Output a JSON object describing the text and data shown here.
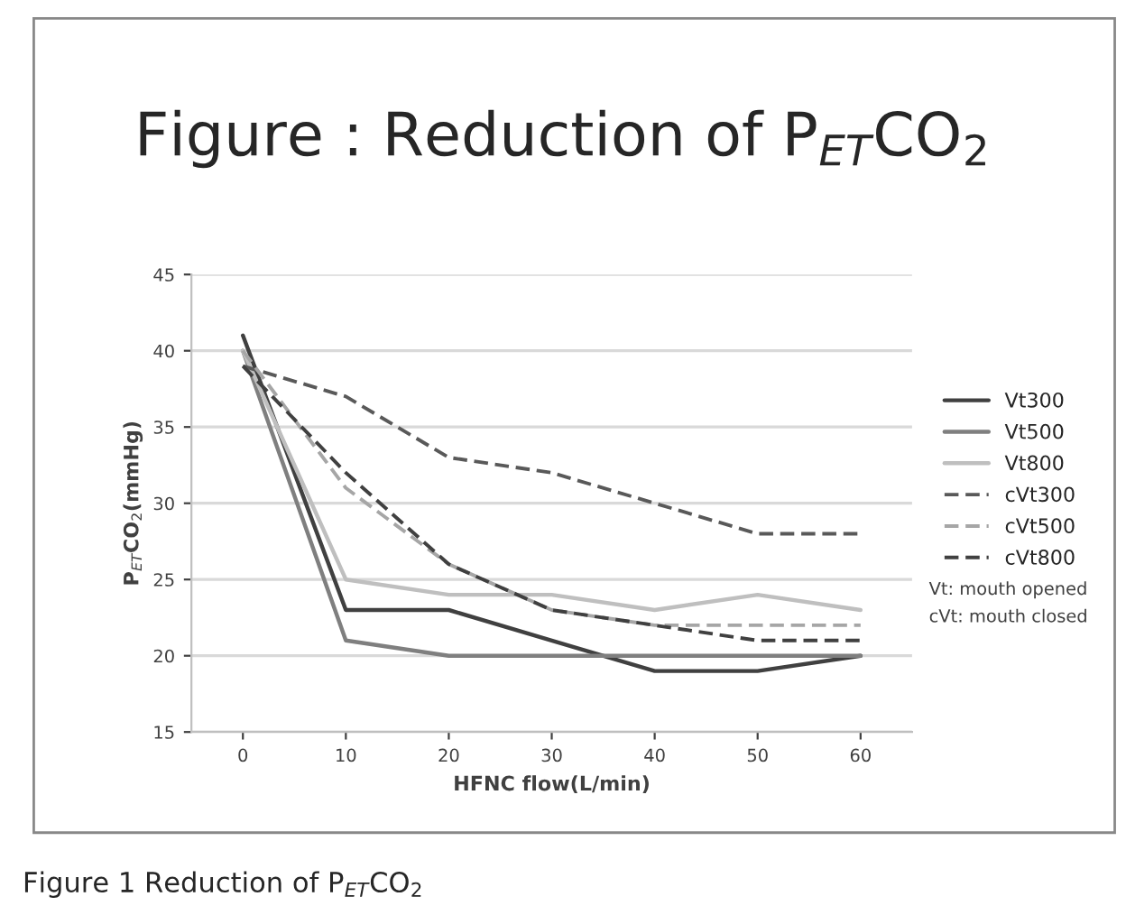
{
  "chart_data": {
    "type": "line",
    "title": "Figure : Reduction of P$_{ET}$CO$_{2}$",
    "xlabel": "HFNC flow(L/min)",
    "ylabel": "P$_{ET}$CO$_{2}$(mmHg)",
    "categories": [
      "0",
      "10",
      "20",
      "30",
      "40",
      "50",
      "60"
    ],
    "series": [
      {
        "name": "Vt300",
        "color": "#404040",
        "line_style": "solid",
        "values": [
          41,
          23,
          23,
          21,
          19,
          19,
          20
        ]
      },
      {
        "name": "Vt500",
        "color": "#7f7f7f",
        "line_style": "solid",
        "values": [
          40,
          21,
          20,
          20,
          20,
          20,
          20
        ]
      },
      {
        "name": "Vt800",
        "color": "#bfbfbf",
        "line_style": "solid",
        "values": [
          40,
          25,
          24,
          24,
          23,
          24,
          23
        ]
      },
      {
        "name": "cVt300",
        "color": "#595959",
        "line_style": "dashed",
        "values": [
          39,
          37,
          33,
          32,
          30,
          28,
          28
        ]
      },
      {
        "name": "cVt500",
        "color": "#a6a6a6",
        "line_style": "dashed",
        "values": [
          40,
          31,
          26,
          23,
          22,
          22,
          22
        ]
      },
      {
        "name": "cVt800",
        "color": "#404040",
        "line_style": "dashed",
        "values": [
          39,
          32,
          26,
          23,
          22,
          21,
          21
        ]
      }
    ],
    "ylim": [
      15,
      45
    ],
    "yticks": [
      15,
      20,
      25,
      30,
      35,
      40,
      45
    ],
    "grid": "y",
    "legend": "right",
    "marker": "none",
    "annotations": [
      "Vt: mouth opened",
      "cVt: mouth closed",
      "Figure 1 Reduction of P$_{ET}$CO$_{2}$"
    ]
  }
}
